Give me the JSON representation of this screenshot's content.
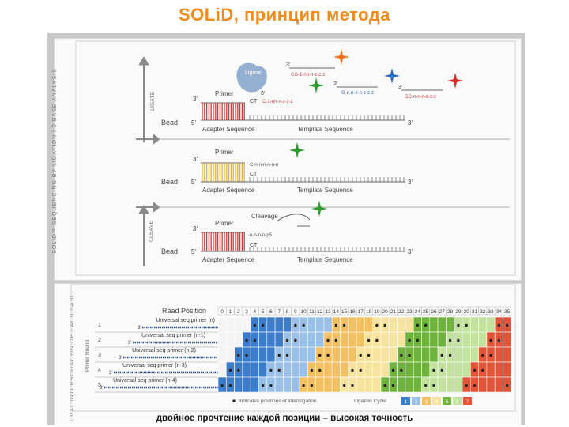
{
  "title": "SOLiD, принцип метода",
  "upper": {
    "side_label": "SOLiD™ SEQUENCING BY LIGATION / 2 BASE ANALYSIS",
    "ligate_label": "LIGATE",
    "cleave_label": "CLEAVE",
    "ligase_label": "Ligase",
    "primer_label": "Primer",
    "bead_label": "Bead",
    "adapter_label": "Adapter Sequence",
    "template_label": "Template Sequence",
    "cleavage_label": "Cleavage",
    "five_prime": "5'",
    "three_prime": "3'",
    "probe_text_1": "CG-1-nn-n-z-z-z",
    "probe_text_2": "G-n-n-n-n-z-z-z",
    "probe_text_3": "GC-n-n-n-z-z-z",
    "probe_text_4": "C-1-nn-n-z-z-z",
    "probe_text_5": "C-n-n-n-n-n-n",
    "probe_text_6": "-n-n-n-n-p5",
    "ct_label": "CT",
    "p5_label": "p5",
    "star_colors": [
      "#e8731c",
      "#2f9a2f",
      "#2a6fc4",
      "#d8302a"
    ]
  },
  "lower": {
    "side_label": "DUAL INTERROGATION OF EACH BASE",
    "primer_round_label": "Primer Round",
    "read_position_label": "Read Position",
    "read_positions": [
      "0",
      "1",
      "2",
      "3",
      "4",
      "5",
      "6",
      "7",
      "8",
      "9",
      "10",
      "11",
      "12",
      "13",
      "14",
      "15",
      "16",
      "17",
      "18",
      "19",
      "20",
      "21",
      "22",
      "23",
      "24",
      "25",
      "26",
      "27",
      "28",
      "29",
      "30",
      "31",
      "32",
      "33",
      "34",
      "35"
    ],
    "round_numbers": [
      "1",
      "2",
      "3",
      "4",
      "5"
    ],
    "primers": [
      "Universal seq primer (n)",
      "Universal seq primer (n-1)",
      "Universal seq primer (n-2)",
      "Universal seq primer (n-3)",
      "Universal seq primer (n-4)"
    ],
    "primer_ends": [
      "3'",
      "3'",
      "3'",
      "3'",
      "3'"
    ],
    "legend_dot": "Indicates positions of interrogation",
    "legend_cycle": "Ligation Cycle",
    "cycle_numbers": [
      "1",
      "2",
      "3",
      "4",
      "5",
      "6",
      "7"
    ],
    "cycle_colors": [
      "#3d7cc9",
      "#9bc0e8",
      "#f2c063",
      "#f7e3a0",
      "#6fb33e",
      "#c3e29f",
      "#e2553a"
    ]
  },
  "caption": "двойное прочтение каждой позиции – высокая точность"
}
